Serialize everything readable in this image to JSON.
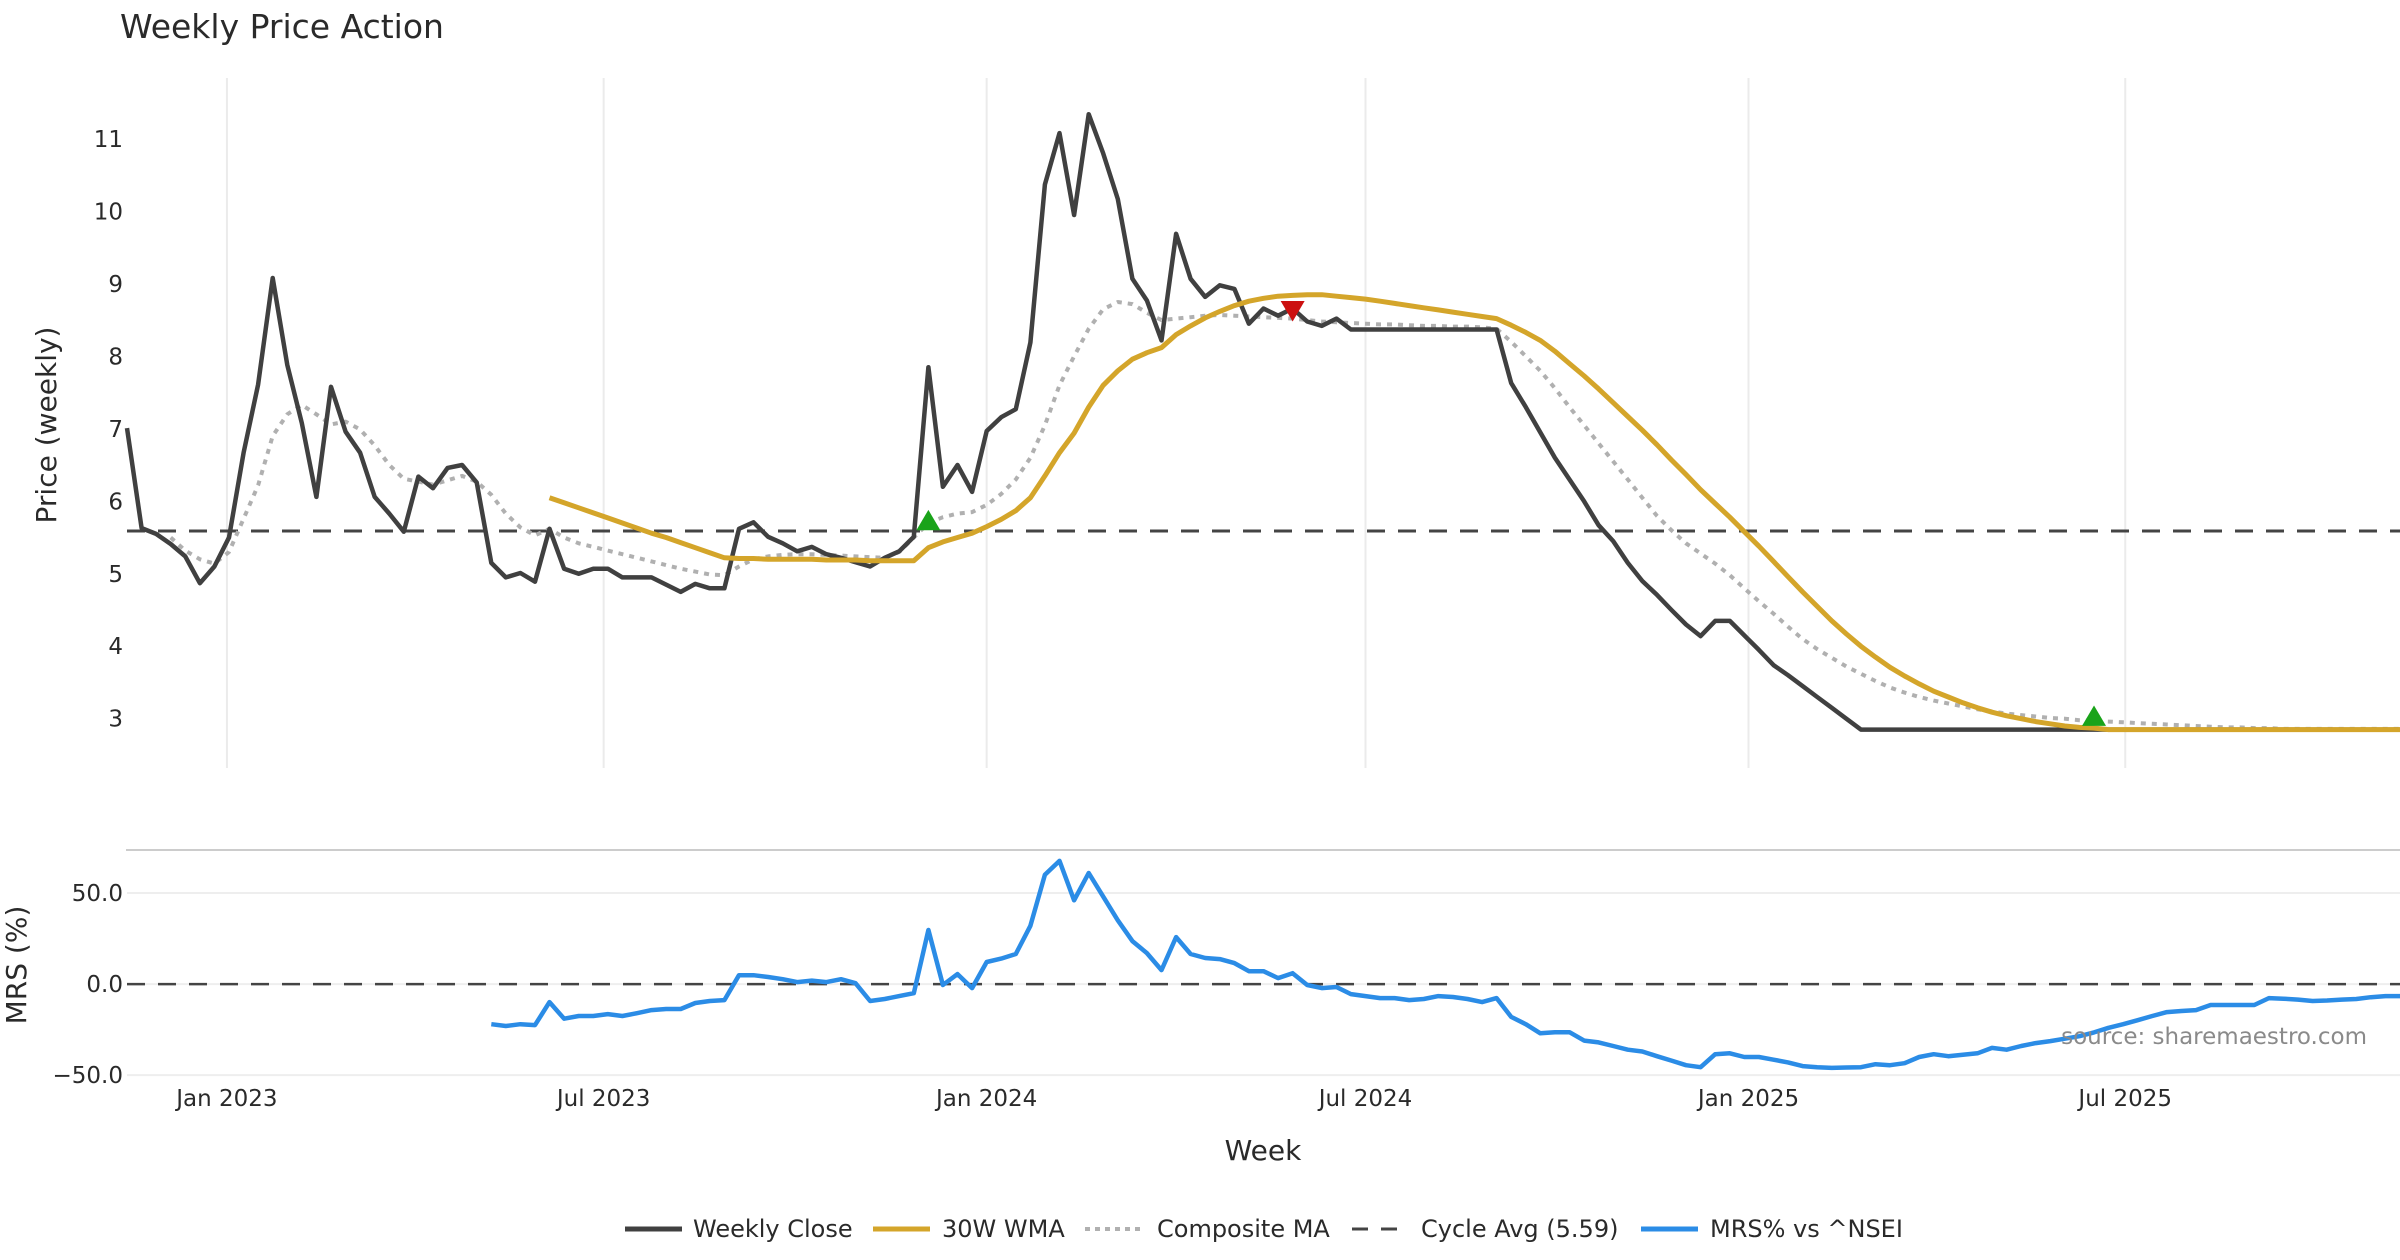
{
  "chart_data": [
    {
      "type": "line",
      "panel": "price",
      "title": "Weekly Price Action",
      "xlabel": "Week",
      "ylabel": "Price (weekly)",
      "x_start": "2022-11-14",
      "x_step_days": 7,
      "x_range": [
        "2022-11-14",
        "2025-11-10"
      ],
      "x_ticks": [
        {
          "date": "2023-01-01",
          "label": "Jan 2023"
        },
        {
          "date": "2023-07-01",
          "label": "Jul 2023"
        },
        {
          "date": "2024-01-01",
          "label": "Jan 2024"
        },
        {
          "date": "2024-07-01",
          "label": "Jul 2024"
        },
        {
          "date": "2025-01-01",
          "label": "Jan 2025"
        },
        {
          "date": "2025-07-01",
          "label": "Jul 2025"
        }
      ],
      "ylim": [
        2.32,
        11.84
      ],
      "y_ticks": [
        3,
        4,
        5,
        6,
        7,
        8,
        9,
        10,
        11
      ],
      "grid": "x",
      "series": [
        {
          "name": "Weekly Close",
          "color": "#404040",
          "style": "solid",
          "start_index": 0,
          "values": [
            7.01,
            5.63,
            5.55,
            5.41,
            5.24,
            4.87,
            5.1,
            5.5,
            6.67,
            7.61,
            9.08,
            7.88,
            7.08,
            6.06,
            7.58,
            6.96,
            6.67,
            6.06,
            5.83,
            5.58,
            6.34,
            6.18,
            6.46,
            6.5,
            6.26,
            5.15,
            4.95,
            5.01,
            4.89,
            5.62,
            5.07,
            5.0,
            5.07,
            5.07,
            4.95,
            4.95,
            4.95,
            4.85,
            4.75,
            4.86,
            4.8,
            4.8,
            5.62,
            5.71,
            5.51,
            5.42,
            5.31,
            5.37,
            5.27,
            5.22,
            5.16,
            5.1,
            5.22,
            5.31,
            5.51,
            7.85,
            6.2,
            6.5,
            6.13,
            6.97,
            7.16,
            7.27,
            8.19,
            10.37,
            11.08,
            9.95,
            11.34,
            10.8,
            10.17,
            9.07,
            8.77,
            8.22,
            9.69,
            9.07,
            8.82,
            8.98,
            8.93,
            8.45,
            8.66,
            8.56,
            8.66,
            8.48,
            8.42,
            8.52,
            8.37,
            8.37,
            8.37,
            8.37,
            8.37,
            8.37,
            8.37,
            8.37,
            8.37,
            8.37,
            8.37,
            7.63,
            7.3,
            6.95,
            6.6,
            6.3,
            6.0,
            5.67,
            5.45,
            5.15,
            4.9,
            4.71,
            4.5,
            4.3,
            4.14,
            4.35,
            4.35,
            4.15,
            3.95,
            3.74,
            3.6,
            3.45,
            3.3,
            3.15,
            3.0,
            2.85,
            2.85,
            2.85,
            2.85,
            2.85,
            2.85,
            2.85,
            2.85,
            2.85,
            2.85,
            2.85,
            2.85,
            2.85,
            2.85,
            2.85,
            2.85,
            2.85,
            2.85,
            2.85,
            2.85,
            2.85,
            2.85,
            2.85,
            2.85,
            2.85,
            2.85,
            2.85,
            2.85,
            2.85,
            2.85,
            2.85,
            2.85,
            2.85,
            2.85,
            2.85,
            2.85,
            2.85,
            2.85
          ]
        },
        {
          "name": "30W WMA",
          "color": "#d4a52a",
          "style": "solid",
          "start_index": 29,
          "values": [
            6.05,
            5.98,
            5.91,
            5.84,
            5.77,
            5.7,
            5.63,
            5.56,
            5.5,
            5.43,
            5.36,
            5.29,
            5.22,
            5.21,
            5.21,
            5.2,
            5.2,
            5.2,
            5.2,
            5.19,
            5.19,
            5.19,
            5.18,
            5.18,
            5.18,
            5.18,
            5.36,
            5.44,
            5.5,
            5.56,
            5.65,
            5.75,
            5.87,
            6.05,
            6.35,
            6.67,
            6.94,
            7.3,
            7.6,
            7.8,
            7.96,
            8.05,
            8.12,
            8.3,
            8.42,
            8.53,
            8.62,
            8.7,
            8.76,
            8.8,
            8.83,
            8.84,
            8.85,
            8.85,
            8.83,
            8.81,
            8.79,
            8.76,
            8.73,
            8.7,
            8.67,
            8.64,
            8.61,
            8.58,
            8.55,
            8.52,
            8.43,
            8.33,
            8.22,
            8.07,
            7.9,
            7.73,
            7.55,
            7.36,
            7.17,
            6.98,
            6.78,
            6.57,
            6.37,
            6.16,
            5.97,
            5.78,
            5.58,
            5.38,
            5.17,
            4.96,
            4.75,
            4.55,
            4.35,
            4.17,
            4.0,
            3.85,
            3.71,
            3.59,
            3.48,
            3.38,
            3.3,
            3.22,
            3.15,
            3.09,
            3.04,
            3.0,
            2.96,
            2.93,
            2.9,
            2.88,
            2.87,
            2.85,
            2.85,
            2.85,
            2.85,
            2.85,
            2.85,
            2.85,
            2.85,
            2.85,
            2.85,
            2.85,
            2.85,
            2.85,
            2.85,
            2.85,
            2.85,
            2.85,
            2.85,
            2.85,
            2.85,
            2.85
          ]
        },
        {
          "name": "Composite MA",
          "color": "#b0b0b0",
          "style": "dotted",
          "start_index": 3,
          "values": [
            5.5,
            5.32,
            5.2,
            5.14,
            5.3,
            5.76,
            6.22,
            6.9,
            7.2,
            7.33,
            7.2,
            7.06,
            7.1,
            6.99,
            6.77,
            6.5,
            6.31,
            6.27,
            6.23,
            6.29,
            6.35,
            6.27,
            6.09,
            5.83,
            5.64,
            5.53,
            5.62,
            5.5,
            5.42,
            5.37,
            5.32,
            5.27,
            5.22,
            5.17,
            5.12,
            5.07,
            5.03,
            4.99,
            4.98,
            5.1,
            5.2,
            5.24,
            5.26,
            5.27,
            5.27,
            5.26,
            5.25,
            5.24,
            5.23,
            5.22,
            5.3,
            5.5,
            5.7,
            5.78,
            5.83,
            5.85,
            5.95,
            6.1,
            6.3,
            6.6,
            7.05,
            7.6,
            8.0,
            8.38,
            8.65,
            8.75,
            8.72,
            8.6,
            8.5,
            8.52,
            8.54,
            8.56,
            8.57,
            8.56,
            8.55,
            8.54,
            8.53,
            8.52,
            8.5,
            8.48,
            8.47,
            8.46,
            8.45,
            8.44,
            8.44,
            8.43,
            8.42,
            8.42,
            8.41,
            8.41,
            8.4,
            8.38,
            8.2,
            8.0,
            7.8,
            7.56,
            7.3,
            7.05,
            6.8,
            6.55,
            6.3,
            6.05,
            5.8,
            5.6,
            5.42,
            5.28,
            5.14,
            4.98,
            4.8,
            4.62,
            4.45,
            4.27,
            4.1,
            3.96,
            3.84,
            3.72,
            3.62,
            3.52,
            3.43,
            3.36,
            3.3,
            3.25,
            3.21,
            3.17,
            3.13,
            3.1,
            3.07,
            3.05,
            3.03,
            3.01,
            3.0,
            2.98,
            2.97,
            2.96,
            2.95,
            2.94,
            2.93,
            2.92,
            2.91,
            2.9,
            2.89,
            2.88,
            2.88,
            2.87,
            2.87,
            2.86,
            2.86,
            2.86,
            2.86,
            2.86,
            2.86,
            2.86,
            2.86,
            2.86
          ]
        }
      ],
      "reference_lines": [
        {
          "name": "Cycle Avg (5.59)",
          "value": 5.59,
          "color": "#444444",
          "style": "dashed"
        }
      ],
      "markers": [
        {
          "type": "buy",
          "shape": "triangle-up",
          "color": "#1aa31a",
          "index": 55,
          "value": 5.7
        },
        {
          "type": "sell",
          "shape": "triangle-down",
          "color": "#cc1111",
          "index": 80,
          "value": 8.63
        },
        {
          "type": "buy",
          "shape": "triangle-up",
          "color": "#1aa31a",
          "index": 135,
          "value": 3.0
        }
      ]
    },
    {
      "type": "line",
      "panel": "mrs",
      "ylabel": "MRS (%)",
      "ylim": [
        -51,
        73.6
      ],
      "y_ticks": [
        {
          "value": 50,
          "label": "50.0"
        },
        {
          "value": 0,
          "label": "0.0"
        },
        {
          "value": -50,
          "label": "−50.0"
        }
      ],
      "grid": "y",
      "series": [
        {
          "name": "MRS% vs ^NSEI",
          "color": "#2b8ce6",
          "style": "solid",
          "start_index": 25,
          "values": [
            -22,
            -23,
            -22,
            -22.5,
            -9.9,
            -19,
            -17.5,
            -17.5,
            -16.5,
            -17.5,
            -16,
            -14.3,
            -13.7,
            -13.7,
            -10.4,
            -9.3,
            -8.8,
            4.9,
            4.9,
            3.9,
            2.7,
            1.1,
            1.9,
            1.1,
            2.7,
            0.5,
            -9.3,
            -8.2,
            -6.6,
            -5,
            29.7,
            -0.5,
            5.5,
            -2.2,
            12.1,
            14,
            16.5,
            32,
            60,
            67.6,
            46,
            61,
            48,
            35,
            23.6,
            17,
            7.7,
            25.8,
            16.5,
            14.3,
            13.7,
            11.5,
            7.1,
            7.1,
            3.3,
            6,
            -0.5,
            -2.2,
            -1.6,
            -5.5,
            -6.6,
            -7.7,
            -7.7,
            -8.8,
            -8.2,
            -6.6,
            -7.1,
            -8.2,
            -9.9,
            -7.7,
            -18,
            -22,
            -27,
            -26.4,
            -26.4,
            -31,
            -32,
            -34,
            -36,
            -37,
            -39.6,
            -42,
            -44.5,
            -45.6,
            -38.5,
            -38,
            -40,
            -40,
            -41.5,
            -43,
            -45,
            -45.6,
            -46,
            -45.8,
            -45.6,
            -44,
            -44.5,
            -43.4,
            -40,
            -38.5,
            -39.6,
            -38.8,
            -38,
            -35,
            -36,
            -34,
            -32.4,
            -31.3,
            -30,
            -28.6,
            -26.5,
            -24,
            -22,
            -19.8,
            -17.5,
            -15.4,
            -14.8,
            -14.3,
            -11.5,
            -11.5,
            -11.5,
            -11.5,
            -7.7,
            -8,
            -8.5,
            -9.3,
            -9,
            -8.5,
            -8.2,
            -7.2,
            -6.6,
            -6.6
          ]
        }
      ],
      "reference_lines": [
        {
          "name": "zero",
          "value": 0,
          "color": "#444444",
          "style": "dashed"
        }
      ]
    }
  ],
  "legend": {
    "placement": "bottom-center",
    "items": [
      {
        "label": "Weekly Close",
        "color": "#404040",
        "style": "solid"
      },
      {
        "label": "30W WMA",
        "color": "#d4a52a",
        "style": "solid"
      },
      {
        "label": "Composite MA",
        "color": "#b0b0b0",
        "style": "dotted"
      },
      {
        "label": "Cycle Avg (5.59)",
        "color": "#444444",
        "style": "dashed"
      },
      {
        "label": "MRS% vs ^NSEI",
        "color": "#2b8ce6",
        "style": "solid"
      }
    ]
  },
  "source_note": "source: sharemaestro.com"
}
